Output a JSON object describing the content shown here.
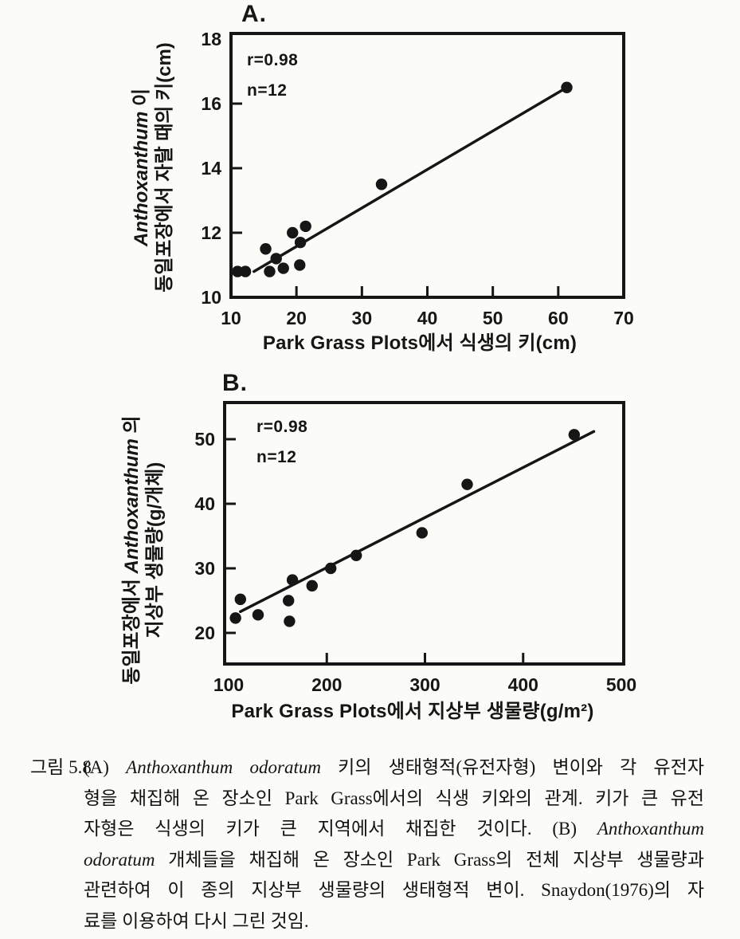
{
  "colors": {
    "ink": "#161616",
    "paper": "#fbfbf8"
  },
  "chart_data": [
    {
      "id": "A",
      "type": "scatter",
      "panel_label": "A.",
      "stats": {
        "r": "r=0.98",
        "n": "n=12"
      },
      "xlabel": "Park Grass Plots에서 식생의 키(cm)",
      "ylabel": {
        "line1_prefix": "",
        "line1_species": "Anthoxanthum",
        "line1_suffix": " 이",
        "line2": "동일포장에서 자랄 때의 키(cm)"
      },
      "xlim": [
        10,
        70
      ],
      "ylim": [
        10,
        18
      ],
      "xticks": [
        10,
        20,
        30,
        40,
        50,
        60,
        70
      ],
      "yticks": [
        10,
        12,
        14,
        16,
        18
      ],
      "grid": false,
      "legend": "none",
      "points": [
        [
          11.0,
          10.8
        ],
        [
          12.2,
          10.8
        ],
        [
          15.3,
          11.5
        ],
        [
          15.9,
          10.8
        ],
        [
          16.9,
          11.2
        ],
        [
          18.0,
          10.9
        ],
        [
          19.4,
          12.0
        ],
        [
          20.5,
          11.0
        ],
        [
          20.6,
          11.7
        ],
        [
          21.4,
          12.2
        ],
        [
          33.0,
          13.5
        ],
        [
          61.3,
          16.5
        ]
      ],
      "trend_line": [
        [
          13.5,
          10.8
        ],
        [
          61.3,
          16.5
        ]
      ]
    },
    {
      "id": "B",
      "type": "scatter",
      "panel_label": "B.",
      "stats": {
        "r": "r=0.98",
        "n": "n=12"
      },
      "xlabel": "Park Grass Plots에서 지상부 생물량(g/m²)",
      "ylabel": {
        "line1_prefix": "동일포장에서 ",
        "line1_species": "Anthoxanthum",
        "line1_suffix": " 의",
        "line2": "지상부 생물량(g/개체)"
      },
      "xlim": [
        100,
        500
      ],
      "ylim": [
        15,
        55
      ],
      "xticks": [
        100,
        200,
        300,
        400,
        500
      ],
      "yticks": [
        20,
        30,
        40,
        50
      ],
      "grid": false,
      "legend": "none",
      "points": [
        [
          107,
          22.3
        ],
        [
          112,
          25.2
        ],
        [
          130,
          22.8
        ],
        [
          161,
          25.0
        ],
        [
          162,
          21.8
        ],
        [
          165,
          28.2
        ],
        [
          185,
          27.3
        ],
        [
          204,
          30.0
        ],
        [
          230,
          32.0
        ],
        [
          297,
          35.5
        ],
        [
          343,
          43.0
        ],
        [
          452,
          50.7
        ]
      ],
      "trend_line": [
        [
          112,
          23.3
        ],
        [
          472,
          51.2
        ]
      ]
    }
  ],
  "caption": {
    "label": "그림 5.8",
    "lines": [
      {
        "runs": [
          {
            "t": "(A) "
          },
          {
            "t": "Anthoxanthum odoratum",
            "i": true
          },
          {
            "t": " 키의 생태형적(유전자형) 변이와 각 유전자"
          }
        ]
      },
      {
        "runs": [
          {
            "t": "형을 채집해 온 장소인 Park Grass에서의 식생 키와의 관계. 키가 큰 유전"
          }
        ]
      },
      {
        "runs": [
          {
            "t": "자형은 식생의 키가 큰 지역에서 채집한 것이다. (B) "
          },
          {
            "t": "Anthoxanthum",
            "i": true
          }
        ]
      },
      {
        "runs": [
          {
            "t": "odoratum",
            "i": true
          },
          {
            "t": " 개체들을 채집해 온 장소인 Park Grass의 전체 지상부 생물량과"
          }
        ]
      },
      {
        "runs": [
          {
            "t": "관련하여 이 종의 지상부 생물량의 생태형적 변이. Snaydon(1976)의 자"
          }
        ]
      },
      {
        "runs": [
          {
            "t": "료를 이용하여 다시 그린 것임."
          }
        ]
      }
    ]
  }
}
